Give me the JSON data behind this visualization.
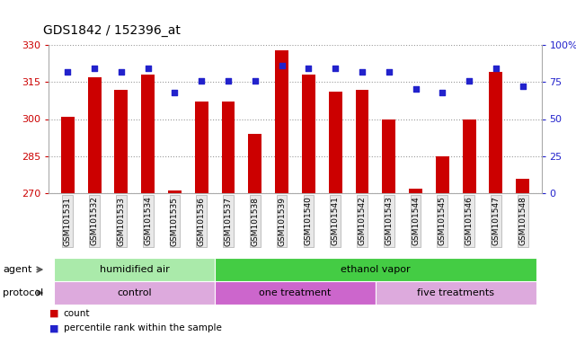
{
  "title": "GDS1842 / 152396_at",
  "samples": [
    "GSM101531",
    "GSM101532",
    "GSM101533",
    "GSM101534",
    "GSM101535",
    "GSM101536",
    "GSM101537",
    "GSM101538",
    "GSM101539",
    "GSM101540",
    "GSM101541",
    "GSM101542",
    "GSM101543",
    "GSM101544",
    "GSM101545",
    "GSM101546",
    "GSM101547",
    "GSM101548"
  ],
  "counts": [
    301,
    317,
    312,
    318,
    271,
    307,
    307,
    294,
    328,
    318,
    311,
    312,
    300,
    272,
    285,
    300,
    319,
    276
  ],
  "percentiles": [
    82,
    84,
    82,
    84,
    68,
    76,
    76,
    76,
    86,
    84,
    84,
    82,
    82,
    70,
    68,
    76,
    84,
    72
  ],
  "ylim_left": [
    270,
    330
  ],
  "yticks_left": [
    270,
    285,
    300,
    315,
    330
  ],
  "ylim_right": [
    0,
    100
  ],
  "yticks_right": [
    0,
    25,
    50,
    75,
    100
  ],
  "bar_color": "#cc0000",
  "dot_color": "#2222cc",
  "agent_groups": [
    {
      "label": "humidified air",
      "start": 0,
      "end": 6,
      "color": "#aaeaaa"
    },
    {
      "label": "ethanol vapor",
      "start": 6,
      "end": 18,
      "color": "#44cc44"
    }
  ],
  "protocol_groups": [
    {
      "label": "control",
      "start": 0,
      "end": 6,
      "color": "#ddaadd"
    },
    {
      "label": "one treatment",
      "start": 6,
      "end": 12,
      "color": "#cc66cc"
    },
    {
      "label": "five treatments",
      "start": 12,
      "end": 18,
      "color": "#ddaadd"
    }
  ],
  "legend_count_label": "count",
  "legend_pct_label": "percentile rank within the sample",
  "grid_color": "#999999",
  "axis_color_left": "#cc0000",
  "axis_color_right": "#2222cc",
  "title_fontsize": 10,
  "tick_fontsize": 8,
  "label_fontsize": 8,
  "bar_width": 0.5
}
